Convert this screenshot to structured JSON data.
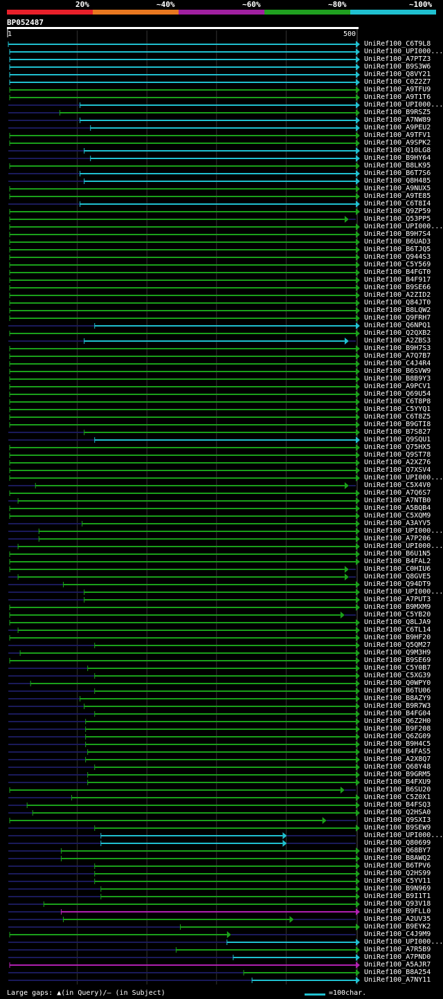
{
  "query_id": "BP052487",
  "ruler": {
    "start": "1",
    "end": "500"
  },
  "legend": [
    {
      "label": "20%",
      "color": "#e8202a"
    },
    {
      "label": "~40%",
      "color": "#e87820"
    },
    {
      "label": "~60%",
      "color": "#a020a0"
    },
    {
      "label": "~80%",
      "color": "#20a020"
    },
    {
      "label": "~100%",
      "color": "#20c0d0"
    }
  ],
  "colors": {
    "cyan": "#20c0d0",
    "green": "#1aa01a",
    "magenta": "#b020b0",
    "faint": "#1a1a5a",
    "grid": "#333333"
  },
  "footer": {
    "gaps_text": "Large gaps: ▲(in Query)/— (in Subject)",
    "scale_text": "=100char."
  },
  "chart_data": {
    "type": "alignment",
    "query_length": 500,
    "hits": [
      {
        "name": "UniRef100_C6T9L8",
        "start": 1,
        "end": 500,
        "color": "cyan"
      },
      {
        "name": "UniRef100_UPI000...",
        "start": 3,
        "end": 500,
        "color": "cyan"
      },
      {
        "name": "UniRef100_A7PTZ3",
        "start": 3,
        "end": 500,
        "color": "cyan"
      },
      {
        "name": "UniRef100_B9S3W6",
        "start": 3,
        "end": 500,
        "color": "cyan"
      },
      {
        "name": "UniRef100_Q8VY21",
        "start": 3,
        "end": 500,
        "color": "cyan"
      },
      {
        "name": "UniRef100_C0Z2Z7",
        "start": 3,
        "end": 500,
        "color": "cyan"
      },
      {
        "name": "UniRef100_A9TFU9",
        "start": 3,
        "end": 500,
        "color": "green"
      },
      {
        "name": "UniRef100_A9T1T6",
        "start": 3,
        "end": 500,
        "color": "green"
      },
      {
        "name": "UniRef100_UPI000...",
        "start": 104,
        "end": 500,
        "color": "cyan"
      },
      {
        "name": "UniRef100_B9RSZ5",
        "start": 75,
        "end": 500,
        "color": "green"
      },
      {
        "name": "UniRef100_A7NW89",
        "start": 104,
        "end": 500,
        "color": "cyan"
      },
      {
        "name": "UniRef100_A9PEU2",
        "start": 119,
        "end": 500,
        "color": "cyan"
      },
      {
        "name": "UniRef100_A9TFV1",
        "start": 3,
        "end": 500,
        "color": "green"
      },
      {
        "name": "UniRef100_A9SPK2",
        "start": 3,
        "end": 500,
        "color": "green"
      },
      {
        "name": "UniRef100_Q10LG8",
        "start": 110,
        "end": 500,
        "color": "cyan"
      },
      {
        "name": "UniRef100_B9HY64",
        "start": 119,
        "end": 500,
        "color": "cyan"
      },
      {
        "name": "UniRef100_B8LK95",
        "start": 3,
        "end": 500,
        "color": "green"
      },
      {
        "name": "UniRef100_B6T7S6",
        "start": 104,
        "end": 500,
        "color": "cyan"
      },
      {
        "name": "UniRef100_Q8H485",
        "start": 110,
        "end": 500,
        "color": "cyan"
      },
      {
        "name": "UniRef100_A9NUX5",
        "start": 3,
        "end": 500,
        "color": "green"
      },
      {
        "name": "UniRef100_A9TE85",
        "start": 3,
        "end": 500,
        "color": "green"
      },
      {
        "name": "UniRef100_C6T8I4",
        "start": 104,
        "end": 500,
        "color": "cyan"
      },
      {
        "name": "UniRef100_Q9ZP59",
        "start": 3,
        "end": 500,
        "color": "green"
      },
      {
        "name": "UniRef100_Q53PP5",
        "start": 3,
        "end": 484,
        "color": "green"
      },
      {
        "name": "UniRef100_UPI000...",
        "start": 3,
        "end": 500,
        "color": "green"
      },
      {
        "name": "UniRef100_B9H7S4",
        "start": 3,
        "end": 500,
        "color": "green"
      },
      {
        "name": "UniRef100_B6UAD3",
        "start": 3,
        "end": 500,
        "color": "green"
      },
      {
        "name": "UniRef100_B6TJQ5",
        "start": 3,
        "end": 500,
        "color": "green"
      },
      {
        "name": "UniRef100_Q944S3",
        "start": 3,
        "end": 500,
        "color": "green"
      },
      {
        "name": "UniRef100_C5Y569",
        "start": 3,
        "end": 500,
        "color": "green"
      },
      {
        "name": "UniRef100_B4FGT0",
        "start": 3,
        "end": 500,
        "color": "green"
      },
      {
        "name": "UniRef100_B4F917",
        "start": 3,
        "end": 500,
        "color": "green"
      },
      {
        "name": "UniRef100_B9SE66",
        "start": 3,
        "end": 500,
        "color": "green"
      },
      {
        "name": "UniRef100_A2ZID2",
        "start": 3,
        "end": 500,
        "color": "green"
      },
      {
        "name": "UniRef100_Q84JT0",
        "start": 3,
        "end": 500,
        "color": "green"
      },
      {
        "name": "UniRef100_B8LQW2",
        "start": 3,
        "end": 500,
        "color": "green"
      },
      {
        "name": "UniRef100_Q9FRH7",
        "start": 3,
        "end": 500,
        "color": "green"
      },
      {
        "name": "UniRef100_Q6NPQ1",
        "start": 125,
        "end": 500,
        "color": "cyan"
      },
      {
        "name": "UniRef100_Q2QXB2",
        "start": 3,
        "end": 500,
        "color": "green"
      },
      {
        "name": "UniRef100_A2ZBS3",
        "start": 110,
        "end": 484,
        "color": "cyan"
      },
      {
        "name": "UniRef100_B9H7S3",
        "start": 3,
        "end": 500,
        "color": "green"
      },
      {
        "name": "UniRef100_A7Q7B7",
        "start": 3,
        "end": 500,
        "color": "green"
      },
      {
        "name": "UniRef100_C4J4R4",
        "start": 3,
        "end": 500,
        "color": "green"
      },
      {
        "name": "UniRef100_B6SVW9",
        "start": 3,
        "end": 500,
        "color": "green"
      },
      {
        "name": "UniRef100_B8B9Y3",
        "start": 3,
        "end": 500,
        "color": "green"
      },
      {
        "name": "UniRef100_A9PCV1",
        "start": 3,
        "end": 500,
        "color": "green"
      },
      {
        "name": "UniRef100_Q69U54",
        "start": 3,
        "end": 500,
        "color": "green"
      },
      {
        "name": "UniRef100_C6T8P8",
        "start": 3,
        "end": 500,
        "color": "green"
      },
      {
        "name": "UniRef100_C5YYQ1",
        "start": 3,
        "end": 500,
        "color": "green"
      },
      {
        "name": "UniRef100_C6T8Z5",
        "start": 3,
        "end": 500,
        "color": "green"
      },
      {
        "name": "UniRef100_B9GTI8",
        "start": 3,
        "end": 500,
        "color": "green"
      },
      {
        "name": "UniRef100_B7S827",
        "start": 110,
        "end": 500,
        "color": "green"
      },
      {
        "name": "UniRef100_Q9SQU1",
        "start": 125,
        "end": 500,
        "color": "cyan"
      },
      {
        "name": "UniRef100_Q75HX5",
        "start": 3,
        "end": 500,
        "color": "green"
      },
      {
        "name": "UniRef100_Q9ST78",
        "start": 3,
        "end": 500,
        "color": "green"
      },
      {
        "name": "UniRef100_A2XZ76",
        "start": 3,
        "end": 500,
        "color": "green"
      },
      {
        "name": "UniRef100_Q7XSV4",
        "start": 3,
        "end": 500,
        "color": "green"
      },
      {
        "name": "UniRef100_UPI000...",
        "start": 3,
        "end": 500,
        "color": "green"
      },
      {
        "name": "UniRef100_C5X4V0",
        "start": 40,
        "end": 484,
        "color": "green"
      },
      {
        "name": "UniRef100_A7Q6S7",
        "start": 3,
        "end": 500,
        "color": "green"
      },
      {
        "name": "UniRef100_A7NTB0",
        "start": 15,
        "end": 500,
        "color": "green"
      },
      {
        "name": "UniRef100_A5BQB4",
        "start": 3,
        "end": 500,
        "color": "green"
      },
      {
        "name": "UniRef100_C5XQM9",
        "start": 3,
        "end": 500,
        "color": "green"
      },
      {
        "name": "UniRef100_A3AYV5",
        "start": 107,
        "end": 500,
        "color": "green"
      },
      {
        "name": "UniRef100_UPI000...",
        "start": 45,
        "end": 500,
        "color": "green"
      },
      {
        "name": "UniRef100_A7P206",
        "start": 45,
        "end": 500,
        "color": "green"
      },
      {
        "name": "UniRef100_UPI000...",
        "start": 15,
        "end": 500,
        "color": "green"
      },
      {
        "name": "UniRef100_B6U1N5",
        "start": 3,
        "end": 500,
        "color": "green"
      },
      {
        "name": "UniRef100_B4FAL2",
        "start": 3,
        "end": 500,
        "color": "green"
      },
      {
        "name": "UniRef100_C0HIU6",
        "start": 3,
        "end": 484,
        "color": "green"
      },
      {
        "name": "UniRef100_Q8GVE5",
        "start": 15,
        "end": 484,
        "color": "green"
      },
      {
        "name": "UniRef100_Q94DT9",
        "start": 80,
        "end": 500,
        "color": "green"
      },
      {
        "name": "UniRef100_UPI000...",
        "start": 110,
        "end": 500,
        "color": "green"
      },
      {
        "name": "UniRef100_A7PUT3",
        "start": 110,
        "end": 500,
        "color": "green"
      },
      {
        "name": "UniRef100_B9MXM9",
        "start": 3,
        "end": 500,
        "color": "green"
      },
      {
        "name": "UniRef100_C5YB20",
        "start": 3,
        "end": 478,
        "color": "green"
      },
      {
        "name": "UniRef100_Q8LJA9",
        "start": 3,
        "end": 500,
        "color": "green"
      },
      {
        "name": "UniRef100_C6TL14",
        "start": 15,
        "end": 500,
        "color": "green"
      },
      {
        "name": "UniRef100_B9HF20",
        "start": 3,
        "end": 500,
        "color": "green"
      },
      {
        "name": "UniRef100_Q5QM27",
        "start": 125,
        "end": 500,
        "color": "green"
      },
      {
        "name": "UniRef100_Q9M3H9",
        "start": 18,
        "end": 500,
        "color": "green"
      },
      {
        "name": "UniRef100_B9SE69",
        "start": 3,
        "end": 500,
        "color": "green"
      },
      {
        "name": "UniRef100_C5Y0B7",
        "start": 115,
        "end": 500,
        "color": "green"
      },
      {
        "name": "UniRef100_C5XG39",
        "start": 125,
        "end": 500,
        "color": "green"
      },
      {
        "name": "UniRef100_Q0WPY0",
        "start": 33,
        "end": 500,
        "color": "green"
      },
      {
        "name": "UniRef100_B6TU06",
        "start": 125,
        "end": 500,
        "color": "green"
      },
      {
        "name": "UniRef100_B8AZY9",
        "start": 104,
        "end": 500,
        "color": "green"
      },
      {
        "name": "UniRef100_B9R7W3",
        "start": 110,
        "end": 500,
        "color": "green"
      },
      {
        "name": "UniRef100_B4FG04",
        "start": 125,
        "end": 500,
        "color": "green"
      },
      {
        "name": "UniRef100_Q6Z2H0",
        "start": 112,
        "end": 500,
        "color": "green"
      },
      {
        "name": "UniRef100_B9F208",
        "start": 112,
        "end": 500,
        "color": "green"
      },
      {
        "name": "UniRef100_Q6ZG09",
        "start": 112,
        "end": 500,
        "color": "green"
      },
      {
        "name": "UniRef100_B9H4C5",
        "start": 112,
        "end": 500,
        "color": "green"
      },
      {
        "name": "UniRef100_B4FAS5",
        "start": 115,
        "end": 500,
        "color": "green"
      },
      {
        "name": "UniRef100_A2X8Q7",
        "start": 112,
        "end": 500,
        "color": "green"
      },
      {
        "name": "UniRef100_Q68Y48",
        "start": 125,
        "end": 500,
        "color": "green"
      },
      {
        "name": "UniRef100_B9GRM5",
        "start": 115,
        "end": 500,
        "color": "green"
      },
      {
        "name": "UniRef100_B4FXU9",
        "start": 115,
        "end": 500,
        "color": "green"
      },
      {
        "name": "UniRef100_B6SU20",
        "start": 3,
        "end": 478,
        "color": "green"
      },
      {
        "name": "UniRef100_C5Z0X1",
        "start": 92,
        "end": 500,
        "color": "green"
      },
      {
        "name": "UniRef100_B4FSQ3",
        "start": 28,
        "end": 500,
        "color": "green"
      },
      {
        "name": "UniRef100_Q2HSA0",
        "start": 36,
        "end": 500,
        "color": "green"
      },
      {
        "name": "UniRef100_Q9SXI3",
        "start": 3,
        "end": 452,
        "color": "green"
      },
      {
        "name": "UniRef100_B9SEW9",
        "start": 125,
        "end": 500,
        "color": "green"
      },
      {
        "name": "UniRef100_UPI000...",
        "start": 134,
        "end": 395,
        "color": "cyan"
      },
      {
        "name": "UniRef100_Q80699",
        "start": 134,
        "end": 395,
        "color": "cyan"
      },
      {
        "name": "UniRef100_Q68BY7",
        "start": 77,
        "end": 500,
        "color": "green"
      },
      {
        "name": "UniRef100_B8AWQ2",
        "start": 77,
        "end": 500,
        "color": "green"
      },
      {
        "name": "UniRef100_B6TPV6",
        "start": 125,
        "end": 500,
        "color": "green"
      },
      {
        "name": "UniRef100_Q2HS99",
        "start": 125,
        "end": 500,
        "color": "green"
      },
      {
        "name": "UniRef100_C5YV11",
        "start": 125,
        "end": 500,
        "color": "green"
      },
      {
        "name": "UniRef100_B9N969",
        "start": 134,
        "end": 500,
        "color": "green"
      },
      {
        "name": "UniRef100_B9I1T1",
        "start": 134,
        "end": 500,
        "color": "green"
      },
      {
        "name": "UniRef100_Q93V18",
        "start": 52,
        "end": 500,
        "color": "green"
      },
      {
        "name": "UniRef100_B9FLL0",
        "start": 77,
        "end": 500,
        "color": "magenta"
      },
      {
        "name": "UniRef100_A2UV35",
        "start": 80,
        "end": 405,
        "color": "green"
      },
      {
        "name": "UniRef100_B9EYK2",
        "start": 248,
        "end": 500,
        "color": "green"
      },
      {
        "name": "UniRef100_C4J9M9",
        "start": 3,
        "end": 315,
        "color": "green"
      },
      {
        "name": "UniRef100_UPI000...",
        "start": 315,
        "end": 500,
        "color": "cyan"
      },
      {
        "name": "UniRef100_A7R5B9",
        "start": 242,
        "end": 500,
        "color": "green"
      },
      {
        "name": "UniRef100_A7PND0",
        "start": 324,
        "end": 500,
        "color": "cyan"
      },
      {
        "name": "UniRef100_A5AJR7",
        "start": 3,
        "end": 500,
        "color": "magenta"
      },
      {
        "name": "UniRef100_B8A254",
        "start": 339,
        "end": 500,
        "color": "green"
      },
      {
        "name": "UniRef100_A7NY11",
        "start": 351,
        "end": 500,
        "color": "cyan"
      }
    ]
  }
}
